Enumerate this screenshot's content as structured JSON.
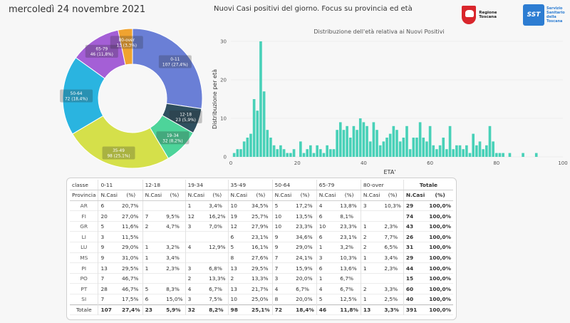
{
  "header": {
    "date": "mercoledì 24 novembre 2021",
    "title": "Nuovi Casi positivi del giorno. Focus su provincia ed età",
    "logo_rt": "Regione Toscana",
    "logo_sst_mark": "SST",
    "logo_sst_text": "Servizio Sanitario della Toscana"
  },
  "chart_data": [
    {
      "type": "pie",
      "variant": "donut",
      "categories": [
        "0-11",
        "12-18",
        "19-34",
        "35-49",
        "50-64",
        "65-79",
        "80-over"
      ],
      "values": [
        107,
        23,
        32,
        98,
        72,
        46,
        13
      ],
      "labels": [
        "107 (27,4%)",
        "23 (5,9%)",
        "32 (8,2%)",
        "98 (25,1%)",
        "72 (18,4%)",
        "46 (11,8%)",
        "13 (3,3%)"
      ],
      "colors": [
        "#6a7fd6",
        "#2f4f5f",
        "#4dd49a",
        "#d5e04a",
        "#2ab4e0",
        "#a45fd6",
        "#f0a330"
      ]
    },
    {
      "type": "bar",
      "title": "Distribuzione dell'età relativa ai Nuovi Positivi",
      "xlabel": "ETA'",
      "ylabel": "Distribuzione per età",
      "xlim": [
        0,
        100
      ],
      "ylim": [
        0,
        30
      ],
      "xticks": [
        0,
        20,
        40,
        60,
        80,
        100
      ],
      "yticks": [
        0,
        10,
        20,
        30
      ],
      "color": "#48d1b8",
      "x": [
        1,
        2,
        3,
        4,
        5,
        6,
        7,
        8,
        9,
        10,
        11,
        12,
        13,
        14,
        15,
        16,
        17,
        18,
        19,
        20,
        21,
        22,
        23,
        24,
        25,
        26,
        27,
        28,
        29,
        30,
        31,
        32,
        33,
        34,
        35,
        36,
        37,
        38,
        39,
        40,
        41,
        42,
        43,
        44,
        45,
        46,
        47,
        48,
        49,
        50,
        51,
        52,
        53,
        54,
        55,
        56,
        57,
        58,
        59,
        60,
        61,
        62,
        63,
        64,
        65,
        66,
        67,
        68,
        69,
        70,
        71,
        72,
        73,
        74,
        75,
        76,
        77,
        78,
        79,
        80,
        81,
        82,
        83,
        84,
        85,
        86,
        87,
        88,
        89,
        90,
        91,
        92,
        93,
        94,
        95,
        96,
        97,
        98,
        99,
        100
      ],
      "values": [
        1,
        2,
        2,
        4,
        5,
        6,
        15,
        12,
        30,
        17,
        7,
        5,
        3,
        2,
        3,
        2,
        1,
        1,
        2,
        0,
        4,
        1,
        2,
        3,
        1,
        3,
        2,
        1,
        3,
        2,
        2,
        7,
        9,
        7,
        8,
        5,
        8,
        7,
        10,
        9,
        8,
        4,
        9,
        7,
        3,
        4,
        5,
        6,
        8,
        7,
        4,
        5,
        8,
        2,
        5,
        5,
        9,
        5,
        4,
        8,
        3,
        2,
        3,
        5,
        2,
        8,
        2,
        3,
        3,
        2,
        3,
        1,
        6,
        3,
        4,
        2,
        3,
        8,
        4,
        1,
        1,
        1,
        0,
        1,
        0,
        0,
        0,
        1,
        0,
        0,
        0,
        1,
        0,
        0,
        0,
        0,
        0,
        0,
        0,
        0
      ]
    },
    {
      "type": "table",
      "group_header_label": "classe",
      "row_header_label": "Provincia",
      "groups": [
        "0-11",
        "12-18",
        "19-34",
        "35-49",
        "50-64",
        "65-79",
        "80-over",
        "Totale"
      ],
      "sub_n": "N.Casi",
      "sub_pct": "(%)",
      "rows": [
        {
          "prov": "AR",
          "cells": [
            "6",
            "20,7%",
            "",
            "",
            "1",
            "3,4%",
            "10",
            "34,5%",
            "5",
            "17,2%",
            "4",
            "13,8%",
            "3",
            "10,3%",
            "29",
            "100,0%"
          ]
        },
        {
          "prov": "FI",
          "cells": [
            "20",
            "27,0%",
            "7",
            "9,5%",
            "12",
            "16,2%",
            "19",
            "25,7%",
            "10",
            "13,5%",
            "6",
            "8,1%",
            "",
            "",
            "74",
            "100,0%"
          ]
        },
        {
          "prov": "GR",
          "cells": [
            "5",
            "11,6%",
            "2",
            "4,7%",
            "3",
            "7,0%",
            "12",
            "27,9%",
            "10",
            "23,3%",
            "10",
            "23,3%",
            "1",
            "2,3%",
            "43",
            "100,0%"
          ]
        },
        {
          "prov": "LI",
          "cells": [
            "3",
            "11,5%",
            "",
            "",
            "",
            "",
            "6",
            "23,1%",
            "9",
            "34,6%",
            "6",
            "23,1%",
            "2",
            "7,7%",
            "26",
            "100,0%"
          ]
        },
        {
          "prov": "LU",
          "cells": [
            "9",
            "29,0%",
            "1",
            "3,2%",
            "4",
            "12,9%",
            "5",
            "16,1%",
            "9",
            "29,0%",
            "1",
            "3,2%",
            "2",
            "6,5%",
            "31",
            "100,0%"
          ]
        },
        {
          "prov": "MS",
          "cells": [
            "9",
            "31,0%",
            "1",
            "3,4%",
            "",
            "",
            "8",
            "27,6%",
            "7",
            "24,1%",
            "3",
            "10,3%",
            "1",
            "3,4%",
            "29",
            "100,0%"
          ]
        },
        {
          "prov": "PI",
          "cells": [
            "13",
            "29,5%",
            "1",
            "2,3%",
            "3",
            "6,8%",
            "13",
            "29,5%",
            "7",
            "15,9%",
            "6",
            "13,6%",
            "1",
            "2,3%",
            "44",
            "100,0%"
          ]
        },
        {
          "prov": "PO",
          "cells": [
            "7",
            "46,7%",
            "",
            "",
            "2",
            "13,3%",
            "2",
            "13,3%",
            "3",
            "20,0%",
            "1",
            "6,7%",
            "",
            "",
            "15",
            "100,0%"
          ]
        },
        {
          "prov": "PT",
          "cells": [
            "28",
            "46,7%",
            "5",
            "8,3%",
            "4",
            "6,7%",
            "13",
            "21,7%",
            "4",
            "6,7%",
            "4",
            "6,7%",
            "2",
            "3,3%",
            "60",
            "100,0%"
          ]
        },
        {
          "prov": "SI",
          "cells": [
            "7",
            "17,5%",
            "6",
            "15,0%",
            "3",
            "7,5%",
            "10",
            "25,0%",
            "8",
            "20,0%",
            "5",
            "12,5%",
            "1",
            "2,5%",
            "40",
            "100,0%"
          ]
        }
      ],
      "total": {
        "prov": "Totale",
        "cells": [
          "107",
          "27,4%",
          "23",
          "5,9%",
          "32",
          "8,2%",
          "98",
          "25,1%",
          "72",
          "18,4%",
          "46",
          "11,8%",
          "13",
          "3,3%",
          "391",
          "100,0%"
        ]
      }
    }
  ]
}
